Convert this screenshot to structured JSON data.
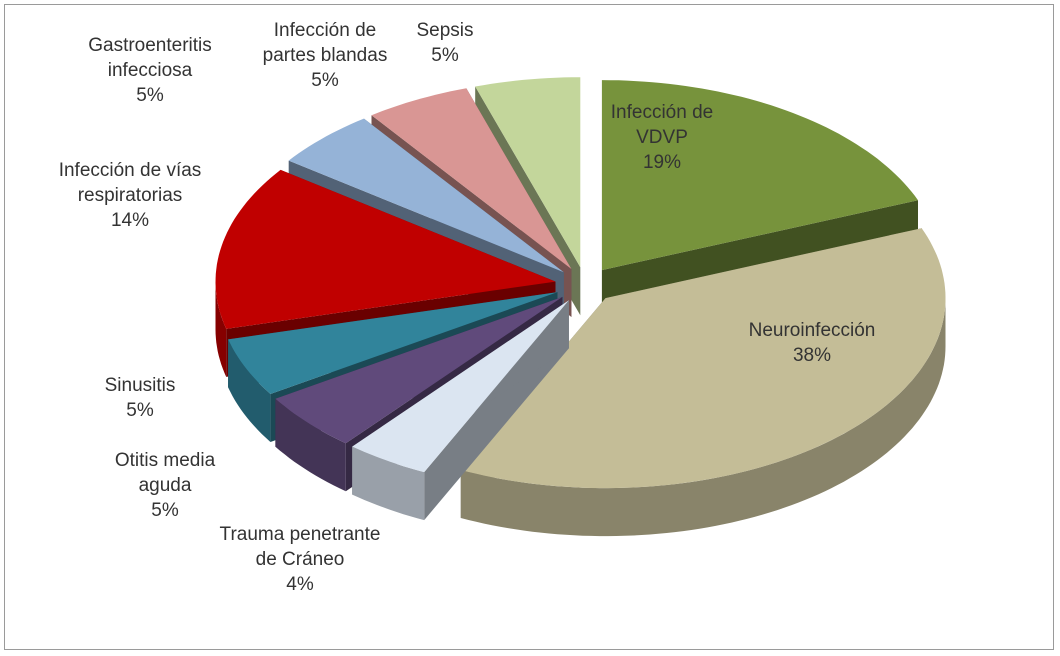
{
  "chart_data": {
    "type": "pie",
    "categories": [
      "Infección de VDVP",
      "Neuroinfección",
      "Trauma penetrante de Cráneo",
      "Otitis media aguda",
      "Sinusitis",
      "Infección de vías respiratorias",
      "Gastroenteritis infecciosa",
      "Infección de partes blandas",
      "Sepsis"
    ],
    "values": [
      19,
      38,
      4,
      5,
      5,
      14,
      5,
      5,
      5
    ],
    "value_labels": [
      "19%",
      "38%",
      "4%",
      "5%",
      "5%",
      "14%",
      "5%",
      "5%",
      "5%"
    ],
    "colors": [
      "#77933c",
      "#c4bd97",
      "#dbe5f1",
      "#604a7b",
      "#31849b",
      "#c00000",
      "#95b3d7",
      "#d99694",
      "#c3d69b"
    ]
  }
}
